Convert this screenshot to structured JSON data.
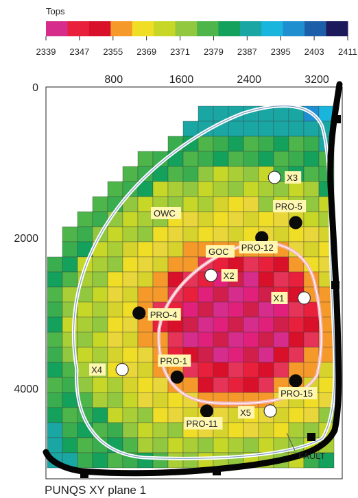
{
  "chart_data": {
    "type": "heatmap",
    "title": "PUNQS  XY plane 1",
    "colorbar": {
      "label": "Tops",
      "ticks": [
        "2339",
        "2347",
        "2355",
        "2369",
        "2371",
        "2379",
        "2387",
        "2395",
        "2403",
        "2411"
      ],
      "colors": [
        "#d62d8c",
        "#e8203c",
        "#d8102a",
        "#f59a2a",
        "#f0dd25",
        "#c6d728",
        "#92c840",
        "#4db549",
        "#14a15c",
        "#1aa7a4",
        "#1ab5dd",
        "#1f8fd0",
        "#1d5ea8",
        "#1c1a5a"
      ]
    },
    "x_axis": {
      "ticks": [
        "800",
        "1600",
        "2400",
        "3200"
      ],
      "values": [
        800,
        1600,
        2400,
        3200
      ],
      "range": [
        0,
        3500
      ]
    },
    "y_axis": {
      "ticks": [
        "0",
        "2000",
        "4000"
      ],
      "values": [
        0,
        2000,
        4000
      ],
      "range": [
        0,
        5200
      ]
    },
    "contours": [
      {
        "label": "OWC",
        "color": "#ffffff"
      },
      {
        "label": "GOC",
        "color": "#f4b8c0"
      }
    ],
    "fault_label": "FAULT",
    "wells": [
      {
        "name": "PRO-1",
        "type": "producer",
        "x": 1550,
        "y": 3850
      },
      {
        "name": "PRO-4",
        "type": "producer",
        "x": 1100,
        "y": 3000
      },
      {
        "name": "PRO-5",
        "type": "producer",
        "x": 2950,
        "y": 1800
      },
      {
        "name": "PRO-11",
        "type": "producer",
        "x": 1900,
        "y": 4300
      },
      {
        "name": "PRO-12",
        "type": "producer",
        "x": 2550,
        "y": 2000
      },
      {
        "name": "PRO-15",
        "type": "producer",
        "x": 2950,
        "y": 3900
      },
      {
        "name": "X1",
        "type": "observation",
        "x": 3050,
        "y": 2800
      },
      {
        "name": "X2",
        "type": "observation",
        "x": 1950,
        "y": 2500
      },
      {
        "name": "X3",
        "type": "observation",
        "x": 2700,
        "y": 1200
      },
      {
        "name": "X4",
        "type": "observation",
        "x": 900,
        "y": 3750
      },
      {
        "name": "X5",
        "type": "observation",
        "x": 2650,
        "y": 4300
      }
    ]
  }
}
